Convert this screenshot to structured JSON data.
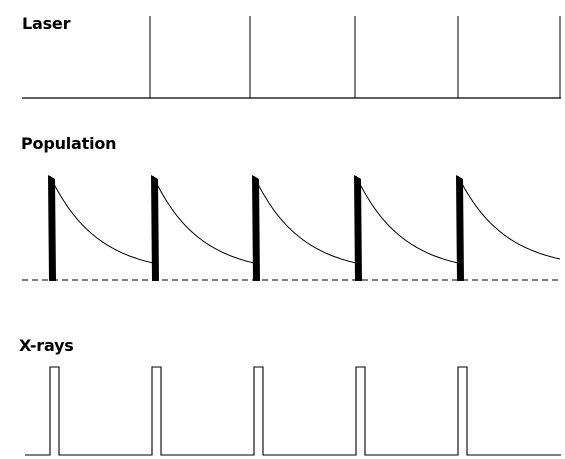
{
  "panels": {
    "laser": {
      "label": "Laser"
    },
    "population": {
      "label": "Population"
    },
    "xrays": {
      "label": "X-rays"
    }
  },
  "pulses": {
    "count": 5,
    "period_units": 1
  },
  "population_model": {
    "decay_shape": "exponential",
    "baseline_style": "dashed"
  },
  "colors": {
    "line": "#000000",
    "background": "#ffffff"
  }
}
